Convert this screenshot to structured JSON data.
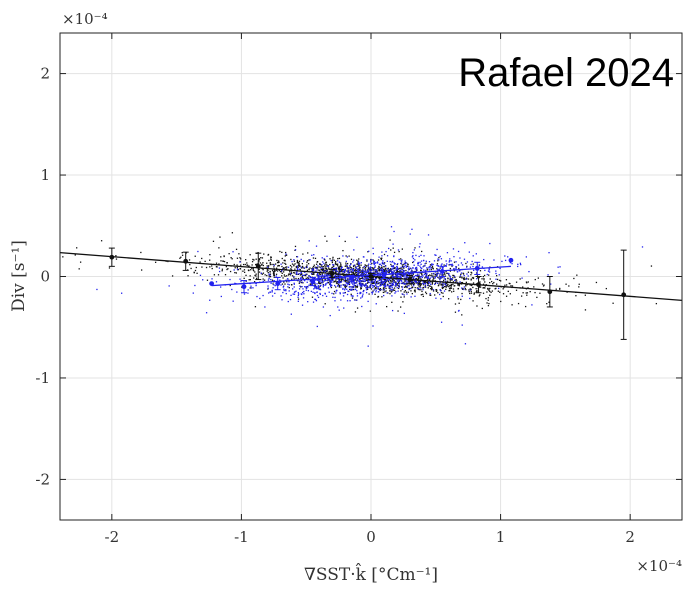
{
  "chart_data": {
    "type": "scatter",
    "title": "",
    "annotation": "Rafael 2024",
    "xlabel": "∇SST·k̂ [°Cm⁻¹]",
    "ylabel": "Div [s⁻¹]",
    "x_multiplier": "×10⁻⁴",
    "y_multiplier": "×10⁻⁴",
    "xlim": [
      -2.4,
      2.4
    ],
    "ylim": [
      -2.4,
      2.4
    ],
    "xticks": [
      -2,
      -1,
      0,
      1,
      2
    ],
    "yticks": [
      -2,
      -1,
      0,
      1,
      2
    ],
    "x_tick_labels": [
      "-2",
      "-1",
      "0",
      "1",
      "2"
    ],
    "y_tick_labels": [
      "-2",
      "-1",
      "0",
      "1",
      "2"
    ],
    "grid": true,
    "series": [
      {
        "color": "#111111",
        "kind": "scatter",
        "n_points": 1800,
        "spread_x": 0.55,
        "spread_y": 0.07,
        "binned_means": [
          {
            "x": -2.0,
            "y": 0.19,
            "err": 0.09
          },
          {
            "x": -1.43,
            "y": 0.15,
            "err": 0.09
          },
          {
            "x": -0.87,
            "y": 0.1,
            "err": 0.13
          },
          {
            "x": -0.3,
            "y": 0.03,
            "err": 0.04
          },
          {
            "x": 0.0,
            "y": 0.0,
            "err": 0.03
          },
          {
            "x": 0.3,
            "y": -0.03,
            "err": 0.04
          },
          {
            "x": 0.83,
            "y": -0.08,
            "err": 0.08
          },
          {
            "x": 1.38,
            "y": -0.15,
            "err": 0.15
          },
          {
            "x": 1.95,
            "y": -0.18,
            "err": 0.44
          }
        ],
        "fit": {
          "x": [
            -2.4,
            2.4
          ],
          "y": [
            0.235,
            -0.235
          ]
        }
      },
      {
        "color": "#2222ee",
        "kind": "scatter",
        "n_points": 1300,
        "spread_x": 0.38,
        "spread_y": 0.09,
        "binned_means": [
          {
            "x": -1.23,
            "y": -0.07,
            "err": 0.0
          },
          {
            "x": -0.98,
            "y": -0.1,
            "err": 0.06
          },
          {
            "x": -0.72,
            "y": -0.07,
            "err": 0.06
          },
          {
            "x": -0.45,
            "y": -0.05,
            "err": 0.04
          },
          {
            "x": -0.15,
            "y": -0.02,
            "err": 0.03
          },
          {
            "x": 0.1,
            "y": 0.01,
            "err": 0.03
          },
          {
            "x": 0.55,
            "y": 0.05,
            "err": 0.05
          },
          {
            "x": 0.82,
            "y": 0.08,
            "err": 0.06
          },
          {
            "x": 1.08,
            "y": 0.16,
            "err": 0.0
          }
        ],
        "fit": {
          "x": [
            -1.23,
            1.08
          ],
          "y": [
            -0.09,
            0.1
          ]
        }
      }
    ]
  }
}
